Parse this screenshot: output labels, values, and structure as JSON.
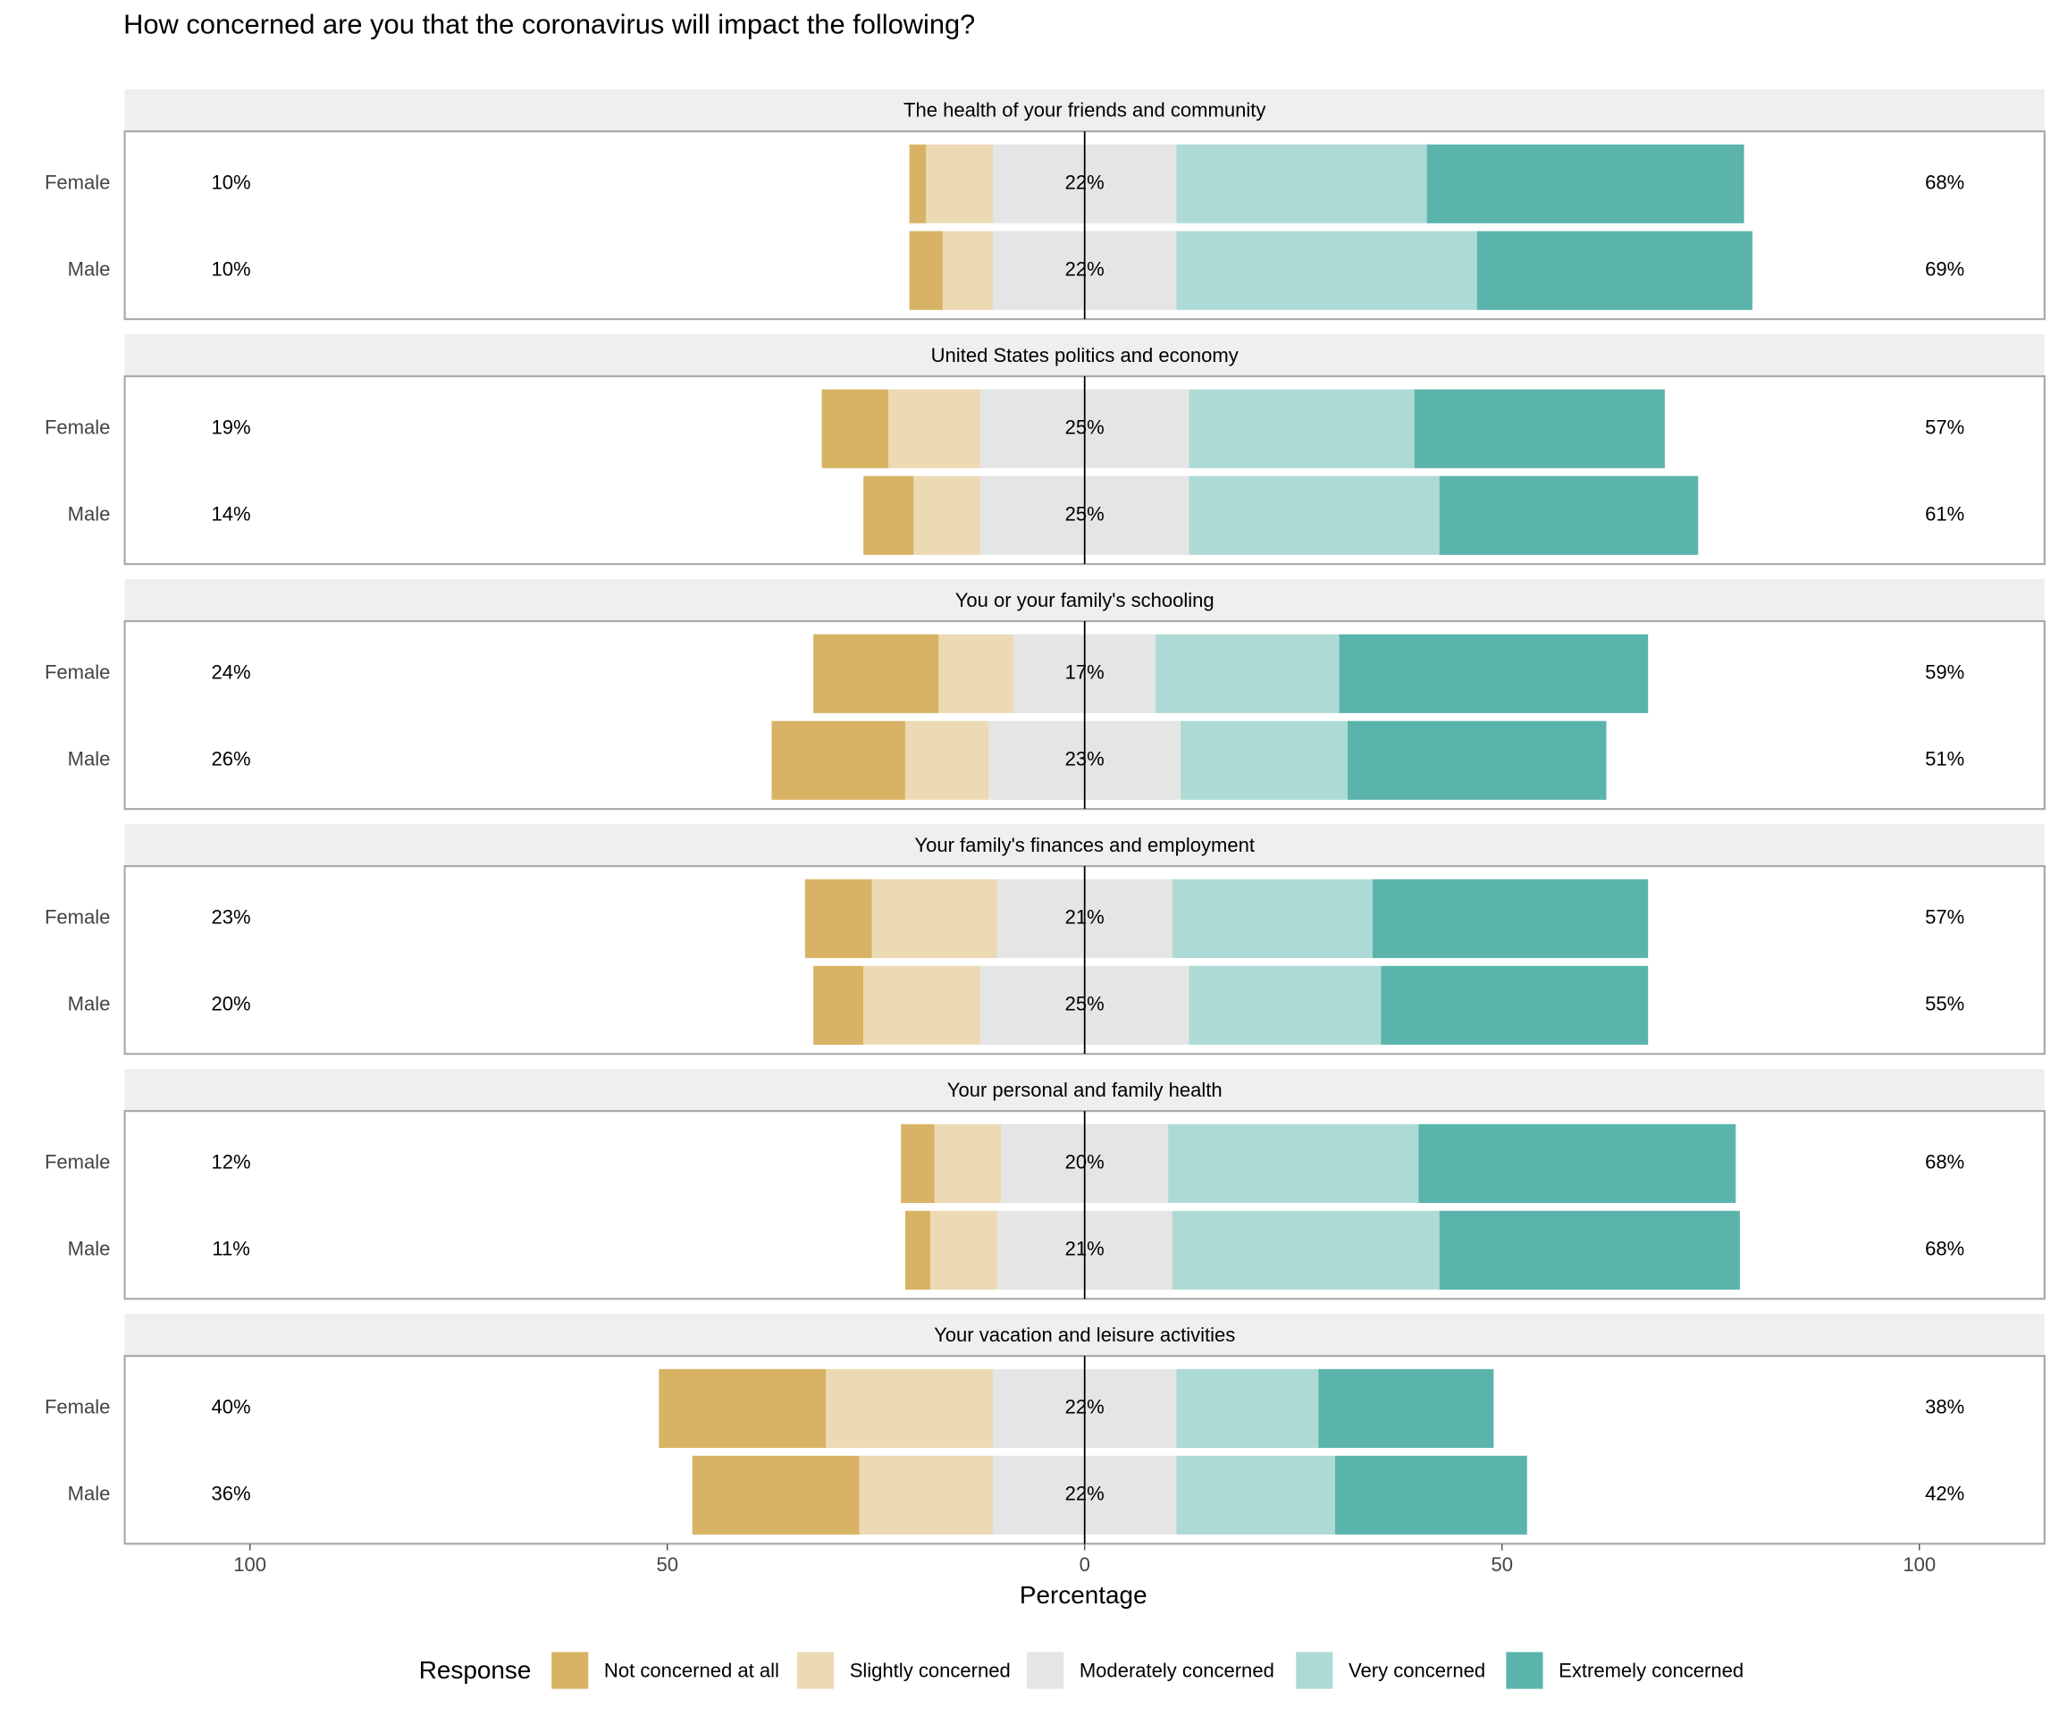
{
  "chart_data": {
    "type": "diverging_bar",
    "title": "How concerned are you that the coronavirus will impact the following?",
    "xlabel": "Percentage",
    "legend_title": "Response",
    "xlim": [
      -115,
      115
    ],
    "xticks": [
      {
        "value": -100,
        "label": "100"
      },
      {
        "value": -50,
        "label": "50"
      },
      0,
      50,
      100
    ],
    "series": [
      {
        "name": "Not concerned at all",
        "color": "#d8b365"
      },
      {
        "name": "Slightly concerned",
        "color": "#ebdab4"
      },
      {
        "name": "Moderately concerned",
        "color": "#e5e5e5"
      },
      {
        "name": "Very concerned",
        "color": "#aedad5"
      },
      {
        "name": "Extremely concerned",
        "color": "#5ab4ac"
      }
    ],
    "panels": [
      {
        "title": "The health of your friends and community",
        "categories": [
          "Female",
          "Male"
        ],
        "values": [
          [
            2,
            8,
            22,
            30,
            38
          ],
          [
            4,
            6,
            22,
            36,
            33
          ]
        ],
        "left": {
          "values": [
            10,
            10
          ],
          "value_labels": [
            "10%",
            "10%"
          ]
        },
        "neutral": {
          "values": [
            22,
            22
          ],
          "value_labels": [
            "22%",
            "22%"
          ]
        },
        "right": {
          "values": [
            68,
            69
          ],
          "value_labels": [
            "68%",
            "69%"
          ]
        }
      },
      {
        "title": "United States politics and economy",
        "categories": [
          "Female",
          "Male"
        ],
        "values": [
          [
            8,
            11,
            25,
            27,
            30
          ],
          [
            6,
            8,
            25,
            30,
            31
          ]
        ],
        "left": {
          "values": [
            19,
            14
          ],
          "value_labels": [
            "19%",
            "14%"
          ]
        },
        "neutral": {
          "values": [
            25,
            25
          ],
          "value_labels": [
            "25%",
            "25%"
          ]
        },
        "right": {
          "values": [
            57,
            61
          ],
          "value_labels": [
            "57%",
            "61%"
          ]
        }
      },
      {
        "title": "You or your family's schooling",
        "categories": [
          "Female",
          "Male"
        ],
        "values": [
          [
            15,
            9,
            17,
            22,
            37
          ],
          [
            16,
            10,
            23,
            20,
            31
          ]
        ],
        "left": {
          "values": [
            24,
            26
          ],
          "value_labels": [
            "24%",
            "26%"
          ]
        },
        "neutral": {
          "values": [
            17,
            23
          ],
          "value_labels": [
            "17%",
            "23%"
          ]
        },
        "right": {
          "values": [
            59,
            51
          ],
          "value_labels": [
            "59%",
            "51%"
          ]
        }
      },
      {
        "title": "Your family's finances and employment",
        "categories": [
          "Female",
          "Male"
        ],
        "values": [
          [
            8,
            15,
            21,
            24,
            33
          ],
          [
            6,
            14,
            25,
            23,
            32
          ]
        ],
        "left": {
          "values": [
            23,
            20
          ],
          "value_labels": [
            "23%",
            "20%"
          ]
        },
        "neutral": {
          "values": [
            21,
            25
          ],
          "value_labels": [
            "21%",
            "25%"
          ]
        },
        "right": {
          "values": [
            57,
            55
          ],
          "value_labels": [
            "57%",
            "55%"
          ]
        }
      },
      {
        "title": "Your personal and family health",
        "categories": [
          "Female",
          "Male"
        ],
        "values": [
          [
            4,
            8,
            20,
            30,
            38
          ],
          [
            3,
            8,
            21,
            32,
            36
          ]
        ],
        "left": {
          "values": [
            12,
            11
          ],
          "value_labels": [
            "12%",
            "11%"
          ]
        },
        "neutral": {
          "values": [
            20,
            21
          ],
          "value_labels": [
            "20%",
            "21%"
          ]
        },
        "right": {
          "values": [
            68,
            68
          ],
          "value_labels": [
            "68%",
            "68%"
          ]
        }
      },
      {
        "title": "Your vacation and leisure activities",
        "categories": [
          "Female",
          "Male"
        ],
        "values": [
          [
            20,
            20,
            22,
            17,
            21
          ],
          [
            20,
            16,
            22,
            19,
            23
          ]
        ],
        "left": {
          "values": [
            40,
            36
          ],
          "value_labels": [
            "40%",
            "36%"
          ]
        },
        "neutral": {
          "values": [
            22,
            22
          ],
          "value_labels": [
            "22%",
            "22%"
          ]
        },
        "right": {
          "values": [
            38,
            42
          ],
          "value_labels": [
            "38%",
            "42%"
          ]
        }
      }
    ]
  }
}
